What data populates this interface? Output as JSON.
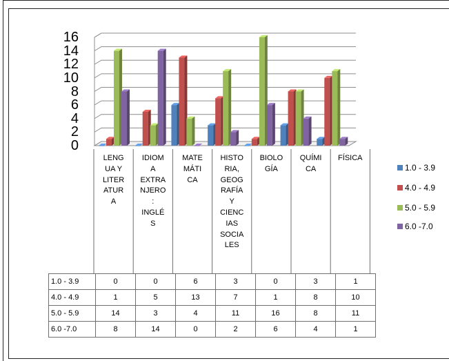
{
  "chart_data": {
    "type": "bar",
    "categories": [
      "LENGUA Y LITERATURA",
      "IDIOMA EXTRANJERO: INGLÉS",
      "MATEMÁTICA",
      "HISTORIA, GEOGRAFÍA Y CIENCIAS SOCIALES",
      "BIOLOGÍA",
      "QUÍMICA",
      "FÍSICA"
    ],
    "category_labels": [
      "LENG\nUA Y\nLITER\nATUR\nA",
      "IDIOM\nA\nEXTRA\nNJERO\n:\nINGLÉ\nS",
      "MATE\nMÁTI\nCA",
      "HISTO\nRIA,\nGEOG\nRAFÍA\nY\nCIENC\nIAS\nSOCIA\nLES",
      "BIOLO\nGÍA",
      "QUÍMI\nCA",
      "FÍSICA"
    ],
    "series": [
      {
        "name": "1.0 - 3.9",
        "table_name": "1.0 - 3.9",
        "color": "#4f81bd",
        "values": [
          0,
          0,
          6,
          3,
          0,
          3,
          1
        ]
      },
      {
        "name": "4.0 - 4.9",
        "table_name": "4.0 - 4.9",
        "color": "#c0504d",
        "values": [
          1,
          5,
          13,
          7,
          1,
          8,
          10
        ]
      },
      {
        "name": "5.0  - 5.9",
        "table_name": "5.0  - 5.9",
        "color": "#9bbb59",
        "values": [
          14,
          3,
          4,
          11,
          16,
          8,
          11
        ]
      },
      {
        "name": "6.0 -7.0",
        "table_name": "6.0 -7.0",
        "color": "#8064a2",
        "values": [
          8,
          14,
          0,
          2,
          6,
          4,
          1
        ]
      }
    ],
    "yticks": [
      "0",
      "2",
      "4",
      "6",
      "8",
      "10",
      "12",
      "14",
      "16"
    ],
    "ylim": [
      0,
      16
    ],
    "legend_position": "right",
    "grid": true,
    "style": "3d-clustered-bar-with-data-table"
  }
}
